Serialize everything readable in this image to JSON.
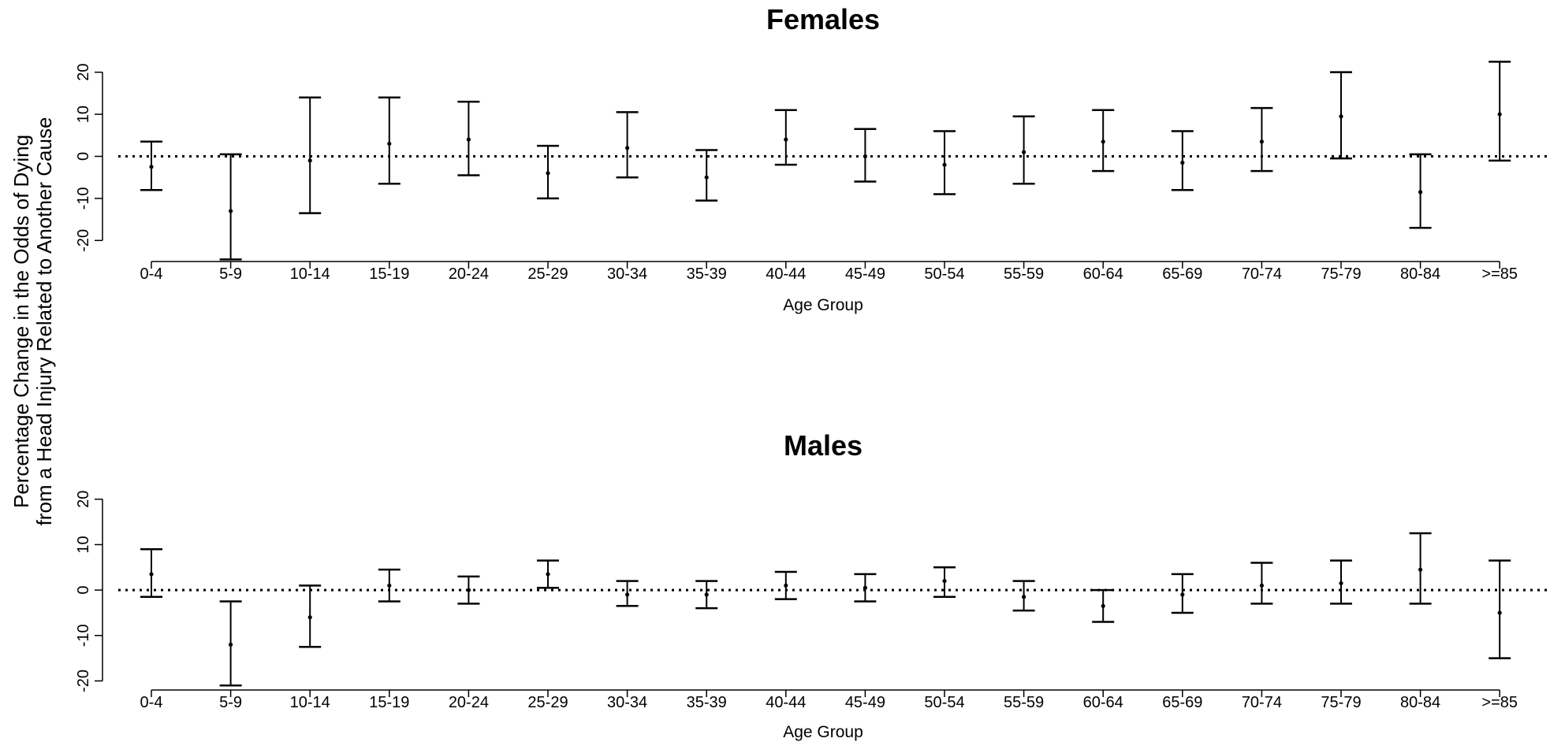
{
  "figure": {
    "ylabel_line1": "Percentage Change in the Odds of Dying",
    "ylabel_line2": "from a Head Injury Related to Another Cause"
  },
  "chart_data": [
    {
      "type": "errorbar",
      "title": "Females",
      "xlabel": "Age Group",
      "ylabel": "Percentage Change in the Odds of Dying from a Head Injury Related to Another Cause",
      "ylim": [
        -25,
        22
      ],
      "yticks": [
        -20,
        -10,
        0,
        10,
        20
      ],
      "reference_line": 0,
      "categories": [
        "0-4",
        "5-9",
        "10-14",
        "15-19",
        "20-24",
        "25-29",
        "30-34",
        "35-39",
        "40-44",
        "45-49",
        "50-54",
        "55-59",
        "60-64",
        "65-69",
        "70-74",
        "75-79",
        "80-84",
        ">=85"
      ],
      "estimate": [
        -2.5,
        -13,
        -1,
        3,
        4,
        -4,
        2,
        -5,
        4,
        0,
        -2,
        1,
        3.5,
        -1.5,
        3.5,
        9.5,
        -8.5,
        10
      ],
      "lower": [
        -8,
        -24.5,
        -13.5,
        -6.5,
        -4.5,
        -10,
        -5,
        -10.5,
        -2,
        -6,
        -9,
        -6.5,
        -3.5,
        -8,
        -3.5,
        -0.5,
        -17,
        -1
      ],
      "upper": [
        3.5,
        0.5,
        14,
        14,
        13,
        2.5,
        10.5,
        1.5,
        11,
        6.5,
        6,
        9.5,
        11,
        6,
        11.5,
        20,
        0.5,
        22.5
      ]
    },
    {
      "type": "errorbar",
      "title": "Males",
      "xlabel": "Age Group",
      "ylabel": "Percentage Change in the Odds of Dying from a Head Injury Related to Another Cause",
      "ylim": [
        -22,
        21
      ],
      "yticks": [
        -20,
        -10,
        0,
        10,
        20
      ],
      "reference_line": 0,
      "categories": [
        "0-4",
        "5-9",
        "10-14",
        "15-19",
        "20-24",
        "25-29",
        "30-34",
        "35-39",
        "40-44",
        "45-49",
        "50-54",
        "55-59",
        "60-64",
        "65-69",
        "70-74",
        "75-79",
        "80-84",
        ">=85"
      ],
      "estimate": [
        3.5,
        -12,
        -6,
        1,
        0,
        3.5,
        -1,
        -1,
        1,
        0.5,
        2,
        -1.5,
        -3.5,
        -1,
        1,
        1.5,
        4.5,
        -5
      ],
      "lower": [
        -1.5,
        -21,
        -12.5,
        -2.5,
        -3,
        0.5,
        -3.5,
        -4,
        -2,
        -2.5,
        -1.5,
        -4.5,
        -7,
        -5,
        -3,
        -3,
        -3,
        -15
      ],
      "upper": [
        9,
        -2.5,
        1,
        4.5,
        3,
        6.5,
        2,
        2,
        4,
        3.5,
        5,
        2,
        0,
        3.5,
        6,
        6.5,
        12.5,
        6.5
      ]
    }
  ]
}
